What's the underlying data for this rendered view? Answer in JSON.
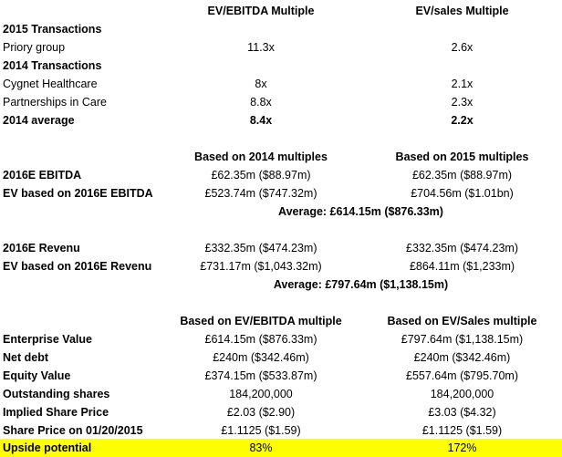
{
  "sheet": {
    "header1": {
      "col1": "EV/EBITDA Multiple",
      "col2": "EV/sales Multiple"
    },
    "section2015": "2015 Transactions",
    "priory": {
      "label": "Priory group",
      "ebitda": "11.3x",
      "sales": "2.6x"
    },
    "section2014": "2014 Transactions",
    "cygnet": {
      "label": "Cygnet Healthcare",
      "ebitda": "8x",
      "sales": "2.1x"
    },
    "pic": {
      "label": "Partnerships in Care",
      "ebitda": "8.8x",
      "sales": "2.3x"
    },
    "avg2014": {
      "label": "2014 average",
      "ebitda": "8.4x",
      "sales": "2.2x"
    },
    "header2": {
      "col1": "Based on 2014 multiples",
      "col2": "Based on 2015 multiples"
    },
    "ebitda2016": {
      "label": "2016E EBITDA",
      "col1": "£62.35m ($88.97m)",
      "col2": "£62.35m ($88.97m)"
    },
    "evEbitda": {
      "label": "EV based on 2016E EBITDA",
      "col1": "£523.74m ($747.32m)",
      "col2": "£704.56m ($1.01bn)"
    },
    "avgEbitda": "Average: £614.15m ($876.33m)",
    "rev2016": {
      "label": "2016E Revenu",
      "col1": "£332.35m ($474.23m)",
      "col2": "£332.35m ($474.23m)"
    },
    "evRev": {
      "label": "EV based on 2016E Revenu",
      "col1": "£731.17m ($1,043.32m)",
      "col2": "£864.11m ($1,233m)"
    },
    "avgRev": "Average: £797.64m ($1,138.15m)",
    "header3": {
      "col1": "Based on EV/EBITDA multiple",
      "col2": "Based on EV/Sales multiple"
    },
    "ev": {
      "label": "Enterprise Value",
      "col1": "£614.15m ($876.33m)",
      "col2": "£797.64m ($1,138.15m)"
    },
    "netDebt": {
      "label": "Net debt",
      "col1": "£240m ($342.46m)",
      "col2": "£240m ($342.46m)"
    },
    "equity": {
      "label": "Equity Value",
      "col1": "£374.15m ($533.87m)",
      "col2": "£557.64m ($795.70m)"
    },
    "shares": {
      "label": "Outstanding shares",
      "col1": "184,200,000",
      "col2": "184,200,000"
    },
    "implied": {
      "label": "Implied Share Price",
      "col1": "£2.03 ($2.90)",
      "col2": "£3.03 ($4.32)"
    },
    "sharePrice": {
      "label": "Share Price on 01/20/2015",
      "col1": "£1.1125 ($1.59)",
      "col2": "£1.1125 ($1.59)"
    },
    "upside": {
      "label": "Upside potential",
      "col1": "83%",
      "col2": "172%"
    },
    "colors": {
      "highlight": "#ffff00"
    }
  }
}
